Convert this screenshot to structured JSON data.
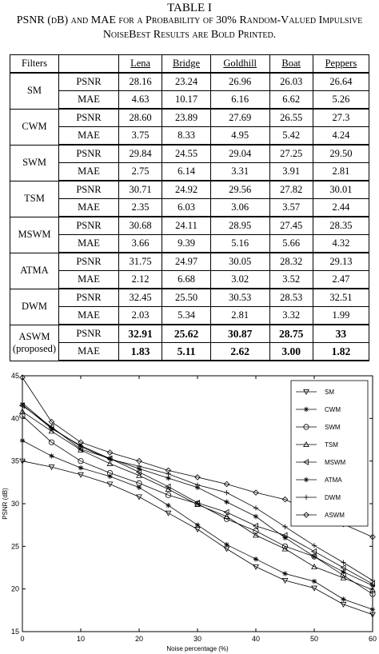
{
  "caption": {
    "line1": "TABLE I",
    "line2": "PSNR (dB) and MAE for a Probability of 30% Random-Valued Impulsive NoiseBest Results are Bold Printed."
  },
  "table": {
    "headers": [
      "Filters",
      "",
      "Lena",
      "Bridge",
      "Goldhill",
      "Boat",
      "Peppers"
    ],
    "groups": [
      {
        "filter": "SM",
        "rows": [
          {
            "metric": "PSNR",
            "values": [
              "28.16",
              "23.24",
              "26.96",
              "26.03",
              "26.64"
            ]
          },
          {
            "metric": "MAE",
            "values": [
              "4.63",
              "10.17",
              "6.16",
              "6.62",
              "5.26"
            ]
          }
        ]
      },
      {
        "filter": "CWM",
        "rows": [
          {
            "metric": "PSNR",
            "values": [
              "28.60",
              "23.89",
              "27.69",
              "26.55",
              "27.3"
            ]
          },
          {
            "metric": "MAE",
            "values": [
              "3.75",
              "8.33",
              "4.95",
              "5.42",
              "4.24"
            ]
          }
        ]
      },
      {
        "filter": "SWM",
        "rows": [
          {
            "metric": "PSNR",
            "values": [
              "29.84",
              "24.55",
              "29.04",
              "27.25",
              "29.50"
            ]
          },
          {
            "metric": "MAE",
            "values": [
              "2.75",
              "6.14",
              "3.31",
              "3.91",
              "2.81"
            ]
          }
        ]
      },
      {
        "filter": "TSM",
        "rows": [
          {
            "metric": "PSNR",
            "values": [
              "30.71",
              "24.92",
              "29.56",
              "27.82",
              "30.01"
            ]
          },
          {
            "metric": "MAE",
            "values": [
              "2.35",
              "6.03",
              "3.06",
              "3.57",
              "2.44"
            ]
          }
        ]
      },
      {
        "filter": "MSWM",
        "rows": [
          {
            "metric": "PSNR",
            "values": [
              "30.68",
              "24.11",
              "28.95",
              "27.45",
              "28.35"
            ]
          },
          {
            "metric": "MAE",
            "values": [
              "3.66",
              "9.39",
              "5.16",
              "5.66",
              "4.32"
            ]
          }
        ]
      },
      {
        "filter": "ATMA",
        "rows": [
          {
            "metric": "PSNR",
            "values": [
              "31.75",
              "24.97",
              "30.05",
              "28.32",
              "29.13"
            ]
          },
          {
            "metric": "MAE",
            "values": [
              "2.12",
              "6.68",
              "3.02",
              "3.52",
              "2.47"
            ]
          }
        ]
      },
      {
        "filter": "DWM",
        "rows": [
          {
            "metric": "PSNR",
            "values": [
              "32.45",
              "25.50",
              "30.53",
              "28.53",
              "32.51"
            ]
          },
          {
            "metric": "MAE",
            "values": [
              "2.03",
              "5.34",
              "2.81",
              "3.32",
              "1.99"
            ]
          }
        ]
      },
      {
        "filter": "ASWM",
        "filter2": "(proposed)",
        "rows": [
          {
            "metric": "PSNR",
            "values": [
              "32.91",
              "25.62",
              "30.87",
              "28.75",
              "33"
            ]
          },
          {
            "metric": "MAE",
            "values": [
              "1.83",
              "5.11",
              "2.62",
              "3.00",
              "1.82"
            ]
          }
        ]
      }
    ]
  },
  "chart_data": {
    "type": "line",
    "xlabel": "Noise percentage (%)",
    "ylabel": "PSNR (dB)",
    "xlim": [
      0,
      60
    ],
    "ylim": [
      15,
      45
    ],
    "xticks": [
      0,
      10,
      20,
      30,
      40,
      50,
      60
    ],
    "yticks": [
      15,
      20,
      25,
      30,
      35,
      40,
      45
    ],
    "legend_position": "top-right",
    "x": [
      0,
      5,
      10,
      15,
      20,
      25,
      30,
      35,
      40,
      45,
      50,
      55,
      60
    ],
    "series": [
      {
        "name": "SM",
        "marker": "tri-down",
        "values": [
          35.0,
          34.3,
          33.4,
          32.3,
          30.8,
          28.9,
          27.0,
          24.7,
          22.6,
          21.0,
          20.1,
          18.2,
          17.0
        ]
      },
      {
        "name": "CWM",
        "marker": "star",
        "values": [
          37.4,
          35.6,
          34.2,
          33.2,
          31.9,
          29.8,
          27.5,
          25.2,
          23.5,
          21.8,
          20.9,
          18.8,
          17.6
        ]
      },
      {
        "name": "SWM",
        "marker": "circle",
        "values": [
          40.3,
          37.2,
          35.0,
          33.6,
          32.4,
          31.0,
          30.0,
          28.2,
          26.8,
          25.0,
          23.8,
          21.6,
          19.4
        ]
      },
      {
        "name": "TSM",
        "marker": "tri-up",
        "values": [
          40.8,
          38.5,
          36.3,
          34.7,
          33.3,
          31.7,
          29.9,
          28.5,
          26.3,
          24.7,
          22.6,
          21.3,
          19.9
        ]
      },
      {
        "name": "MSWM",
        "marker": "tri-left",
        "values": [
          41.5,
          39.0,
          36.4,
          35.3,
          33.7,
          32.0,
          30.1,
          29.0,
          27.4,
          26.3,
          24.4,
          22.5,
          20.6
        ]
      },
      {
        "name": "ATMA",
        "marker": "star",
        "values": [
          41.6,
          38.8,
          36.8,
          35.3,
          34.1,
          33.0,
          31.9,
          30.2,
          28.5,
          26.0,
          23.8,
          22.0,
          20.4
        ]
      },
      {
        "name": "DWM",
        "marker": "plus",
        "values": [
          41.8,
          38.9,
          36.7,
          35.2,
          34.4,
          33.5,
          32.2,
          31.3,
          29.5,
          27.3,
          25.1,
          23.1,
          21.0
        ]
      },
      {
        "name": "ASWM",
        "marker": "diamond",
        "values": [
          44.8,
          39.6,
          37.2,
          36.0,
          35.0,
          33.9,
          33.1,
          32.3,
          31.3,
          30.5,
          28.9,
          27.6,
          26.1
        ]
      }
    ]
  }
}
